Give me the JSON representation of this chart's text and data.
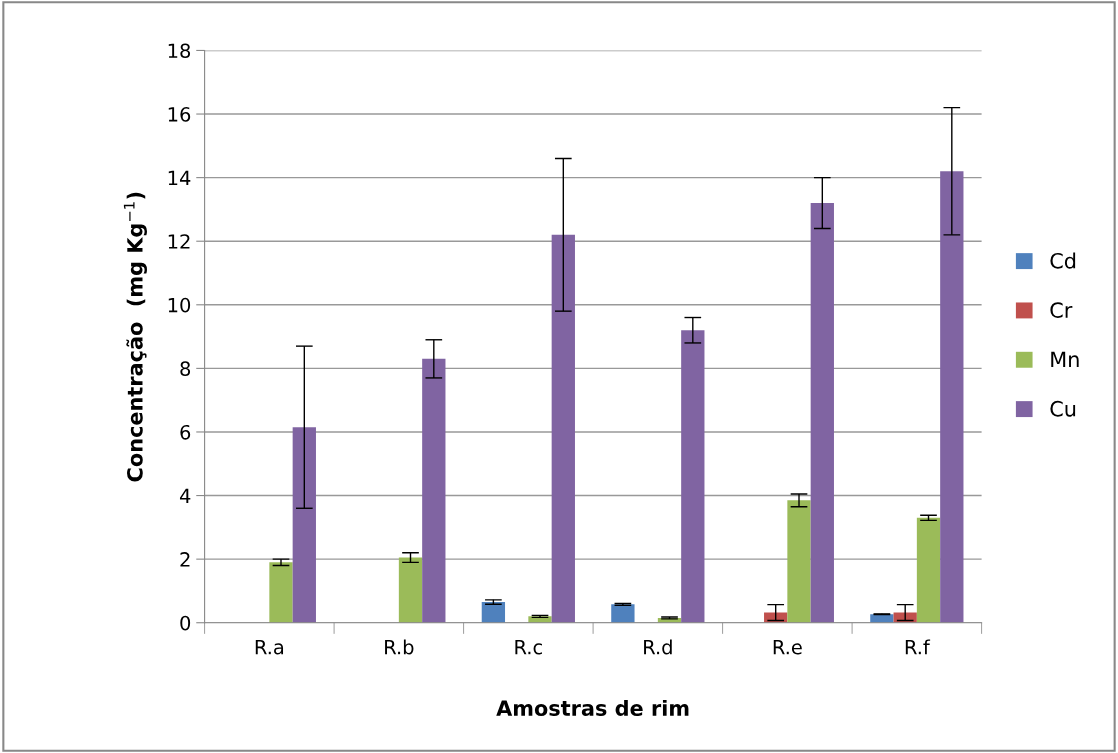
{
  "chart_data": {
    "type": "bar",
    "xlabel": "Amostras de rim",
    "ylabel": "Concentração  (mg Kg$^{−1}$)",
    "categories": [
      "R.a",
      "R.b",
      "R.c",
      "R.d",
      "R.e",
      "R.f"
    ],
    "series": [
      {
        "name": "Cd",
        "color": "#4f81bd",
        "values": [
          null,
          null,
          0.65,
          0.58,
          null,
          0.27
        ],
        "errors": [
          null,
          null,
          0.07,
          0.03,
          null,
          0.01
        ]
      },
      {
        "name": "Cr",
        "color": "#c0504d",
        "values": [
          null,
          null,
          null,
          null,
          0.32,
          0.32
        ],
        "errors": [
          null,
          null,
          null,
          null,
          0.25,
          0.25
        ]
      },
      {
        "name": "Mn",
        "color": "#9bbb59",
        "values": [
          1.9,
          2.05,
          0.2,
          0.15,
          3.85,
          3.3
        ],
        "errors": [
          0.1,
          0.15,
          0.03,
          0.03,
          0.2,
          0.08
        ]
      },
      {
        "name": "Cu",
        "color": "#8064a2",
        "values": [
          6.15,
          8.3,
          12.2,
          9.2,
          13.2,
          14.2
        ],
        "errors": [
          2.55,
          0.6,
          2.4,
          0.4,
          0.8,
          2.0
        ]
      }
    ],
    "ylim": [
      0,
      18
    ],
    "yticks": [
      0,
      2,
      4,
      6,
      8,
      10,
      12,
      14,
      16,
      18
    ],
    "grid": "y",
    "legend": "right"
  }
}
